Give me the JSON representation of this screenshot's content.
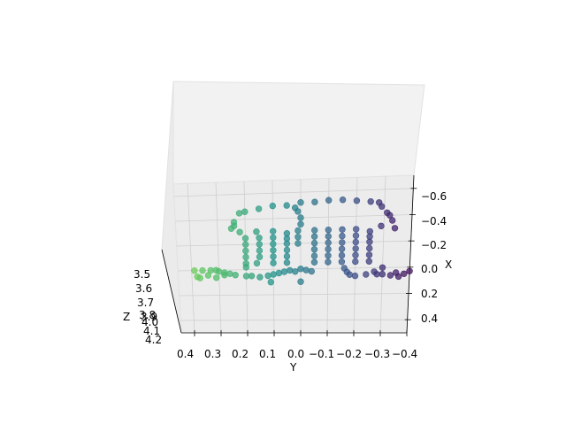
{
  "chart_data": {
    "type": "scatter",
    "projection": "3d",
    "title": "",
    "xlabel": "X",
    "ylabel": "Y",
    "zlabel": "Z",
    "xlim": [
      -0.7,
      0.5
    ],
    "ylim": [
      -0.4,
      0.45
    ],
    "zlim": [
      3.45,
      4.2
    ],
    "x_ticks": [
      "−0.6",
      "−0.4",
      "−0.2",
      "0.0",
      "0.2",
      "0.4"
    ],
    "y_ticks": [
      "0.4",
      "0.3",
      "0.2",
      "0.1",
      "0.0",
      "−0.1",
      "−0.2",
      "−0.3",
      "−0.4"
    ],
    "z_ticks": [
      "3.5",
      "3.6",
      "3.7",
      "3.8",
      "3.9",
      "4.0",
      "4.1",
      "4.2"
    ],
    "grid": true,
    "colormap": "viridis",
    "colors": {
      "pane": "#f2f2f2",
      "grid": "#cfcfcf"
    },
    "series": [
      {
        "points": [
          {
            "x": -0.52,
            "y": 0.0,
            "z": 3.9
          },
          {
            "x": -0.52,
            "y": -0.05,
            "z": 3.9
          },
          {
            "x": -0.53,
            "y": -0.1,
            "z": 3.9
          },
          {
            "x": -0.53,
            "y": -0.15,
            "z": 3.9
          },
          {
            "x": -0.52,
            "y": -0.2,
            "z": 3.9
          },
          {
            "x": -0.51,
            "y": -0.25,
            "z": 3.9
          },
          {
            "x": -0.5,
            "y": -0.28,
            "z": 3.9
          },
          {
            "x": -0.47,
            "y": -0.29,
            "z": 3.9
          },
          {
            "x": -0.42,
            "y": -0.31,
            "z": 3.9
          },
          {
            "x": -0.36,
            "y": -0.33,
            "z": 3.9
          },
          {
            "x": -0.3,
            "y": -0.34,
            "z": 3.9
          },
          {
            "x": -0.5,
            "y": 0.05,
            "z": 3.9
          },
          {
            "x": -0.5,
            "y": 0.1,
            "z": 3.9
          },
          {
            "x": -0.48,
            "y": 0.15,
            "z": 3.9
          },
          {
            "x": -0.46,
            "y": 0.2,
            "z": 3.9
          },
          {
            "x": -0.45,
            "y": 0.22,
            "z": 3.9
          },
          {
            "x": -0.38,
            "y": 0.24,
            "z": 3.9
          },
          {
            "x": -0.33,
            "y": 0.25,
            "z": 3.9
          },
          {
            "x": -0.48,
            "y": 0.02,
            "z": 3.9
          },
          {
            "x": -0.45,
            "y": 0.01,
            "z": 3.9
          },
          {
            "x": -0.4,
            "y": 0.0,
            "z": 3.9
          },
          {
            "x": -0.35,
            "y": 0.0,
            "z": 3.9
          },
          {
            "x": -0.3,
            "y": 0.01,
            "z": 3.9
          },
          {
            "x": -0.25,
            "y": 0.01,
            "z": 3.9
          },
          {
            "x": -0.2,
            "y": 0.01,
            "z": 3.9
          },
          {
            "x": -0.3,
            "y": 0.22,
            "z": 3.9
          },
          {
            "x": -0.25,
            "y": 0.2,
            "z": 3.9
          },
          {
            "x": -0.2,
            "y": 0.2,
            "z": 3.9
          },
          {
            "x": -0.15,
            "y": 0.2,
            "z": 3.9
          },
          {
            "x": -0.1,
            "y": 0.2,
            "z": 3.9
          },
          {
            "x": -0.05,
            "y": 0.2,
            "z": 3.9
          },
          {
            "x": -0.02,
            "y": 0.2,
            "z": 3.9
          },
          {
            "x": -0.3,
            "y": 0.16,
            "z": 3.9
          },
          {
            "x": -0.25,
            "y": 0.15,
            "z": 3.9
          },
          {
            "x": -0.2,
            "y": 0.15,
            "z": 3.9
          },
          {
            "x": -0.15,
            "y": 0.15,
            "z": 3.9
          },
          {
            "x": -0.1,
            "y": 0.15,
            "z": 3.9
          },
          {
            "x": -0.05,
            "y": 0.16,
            "z": 3.9
          },
          {
            "x": -0.3,
            "y": 0.1,
            "z": 3.9
          },
          {
            "x": -0.25,
            "y": 0.1,
            "z": 3.9
          },
          {
            "x": -0.2,
            "y": 0.1,
            "z": 3.9
          },
          {
            "x": -0.15,
            "y": 0.1,
            "z": 3.9
          },
          {
            "x": -0.1,
            "y": 0.1,
            "z": 3.9
          },
          {
            "x": -0.05,
            "y": 0.1,
            "z": 3.9
          },
          {
            "x": -0.28,
            "y": 0.05,
            "z": 3.9
          },
          {
            "x": -0.24,
            "y": 0.05,
            "z": 3.9
          },
          {
            "x": -0.2,
            "y": 0.05,
            "z": 3.9
          },
          {
            "x": -0.15,
            "y": 0.05,
            "z": 3.9
          },
          {
            "x": -0.1,
            "y": 0.05,
            "z": 3.9
          },
          {
            "x": -0.05,
            "y": 0.05,
            "z": 3.9
          },
          {
            "x": -0.3,
            "y": -0.05,
            "z": 3.9
          },
          {
            "x": -0.25,
            "y": -0.05,
            "z": 3.9
          },
          {
            "x": -0.2,
            "y": -0.05,
            "z": 3.9
          },
          {
            "x": -0.15,
            "y": -0.05,
            "z": 3.9
          },
          {
            "x": -0.1,
            "y": -0.05,
            "z": 3.9
          },
          {
            "x": -0.05,
            "y": -0.05,
            "z": 3.9
          },
          {
            "x": -0.3,
            "y": -0.1,
            "z": 3.9
          },
          {
            "x": -0.25,
            "y": -0.1,
            "z": 3.9
          },
          {
            "x": -0.2,
            "y": -0.1,
            "z": 3.9
          },
          {
            "x": -0.15,
            "y": -0.1,
            "z": 3.9
          },
          {
            "x": -0.1,
            "y": -0.1,
            "z": 3.9
          },
          {
            "x": -0.05,
            "y": -0.1,
            "z": 3.9
          },
          {
            "x": -0.3,
            "y": -0.15,
            "z": 3.9
          },
          {
            "x": -0.25,
            "y": -0.15,
            "z": 3.9
          },
          {
            "x": -0.2,
            "y": -0.15,
            "z": 3.9
          },
          {
            "x": -0.15,
            "y": -0.15,
            "z": 3.9
          },
          {
            "x": -0.1,
            "y": -0.15,
            "z": 3.9
          },
          {
            "x": -0.05,
            "y": -0.15,
            "z": 3.9
          },
          {
            "x": -0.3,
            "y": -0.2,
            "z": 3.9
          },
          {
            "x": -0.25,
            "y": -0.2,
            "z": 3.9
          },
          {
            "x": -0.2,
            "y": -0.2,
            "z": 3.9
          },
          {
            "x": -0.15,
            "y": -0.2,
            "z": 3.9
          },
          {
            "x": -0.1,
            "y": -0.2,
            "z": 3.9
          },
          {
            "x": -0.05,
            "y": -0.2,
            "z": 3.9
          },
          {
            "x": -0.28,
            "y": -0.25,
            "z": 3.9
          },
          {
            "x": -0.24,
            "y": -0.25,
            "z": 3.9
          },
          {
            "x": -0.2,
            "y": -0.25,
            "z": 3.9
          },
          {
            "x": -0.15,
            "y": -0.25,
            "z": 3.9
          },
          {
            "x": -0.1,
            "y": -0.25,
            "z": 3.9
          },
          {
            "x": -0.05,
            "y": -0.25,
            "z": 3.9
          },
          {
            "x": 0.0,
            "y": -0.3,
            "z": 3.9
          },
          {
            "x": 0.03,
            "y": -0.27,
            "z": 3.9
          },
          {
            "x": 0.05,
            "y": -0.24,
            "z": 3.9
          },
          {
            "x": 0.06,
            "y": -0.2,
            "z": 3.9
          },
          {
            "x": 0.05,
            "y": -0.18,
            "z": 3.9
          },
          {
            "x": 0.03,
            "y": -0.17,
            "z": 3.9
          },
          {
            "x": 0.0,
            "y": -0.16,
            "z": 3.9
          },
          {
            "x": 0.0,
            "y": 0.0,
            "z": 3.9
          },
          {
            "x": 0.01,
            "y": -0.02,
            "z": 3.9
          },
          {
            "x": 0.02,
            "y": -0.04,
            "z": 3.9
          },
          {
            "x": 0.02,
            "y": 0.02,
            "z": 3.9
          },
          {
            "x": 0.01,
            "y": 0.04,
            "z": 3.9
          },
          {
            "x": 0.02,
            "y": 0.06,
            "z": 3.9
          },
          {
            "x": 0.03,
            "y": 0.08,
            "z": 3.9
          },
          {
            "x": 0.04,
            "y": 0.1,
            "z": 3.9
          },
          {
            "x": 0.05,
            "y": 0.12,
            "z": 3.9
          },
          {
            "x": 0.06,
            "y": 0.15,
            "z": 3.9
          },
          {
            "x": 0.05,
            "y": 0.18,
            "z": 3.9
          },
          {
            "x": 0.05,
            "y": 0.2,
            "z": 3.9
          },
          {
            "x": 0.04,
            "y": 0.24,
            "z": 3.9
          },
          {
            "x": 0.03,
            "y": 0.26,
            "z": 3.9
          },
          {
            "x": 0.02,
            "y": 0.28,
            "z": 3.9
          },
          {
            "x": 0.01,
            "y": 0.3,
            "z": 3.9
          },
          {
            "x": 0.0,
            "y": 0.31,
            "z": 3.9
          },
          {
            "x": 0.0,
            "y": 0.33,
            "z": 3.9
          },
          {
            "x": 0.0,
            "y": 0.36,
            "z": 3.9
          },
          {
            "x": 0.0,
            "y": 0.39,
            "z": 3.9
          },
          {
            "x": 0.05,
            "y": 0.38,
            "z": 3.9
          },
          {
            "x": 0.06,
            "y": 0.37,
            "z": 3.9
          },
          {
            "x": 0.04,
            "y": 0.34,
            "z": 3.9
          },
          {
            "x": 0.06,
            "y": 0.31,
            "z": 3.9
          },
          {
            "x": 0.04,
            "y": 0.28,
            "z": 3.9
          },
          {
            "x": 0.05,
            "y": -0.3,
            "z": 3.9
          },
          {
            "x": 0.06,
            "y": -0.33,
            "z": 3.9
          },
          {
            "x": 0.07,
            "y": -0.36,
            "z": 3.9
          },
          {
            "x": 0.05,
            "y": -0.38,
            "z": 3.9
          },
          {
            "x": 0.03,
            "y": -0.4,
            "z": 3.9
          },
          {
            "x": 0.05,
            "y": -0.28,
            "z": 3.9
          },
          {
            "x": 0.04,
            "y": -0.35,
            "z": 3.9
          },
          {
            "x": 0.1,
            "y": 0.11,
            "z": 3.9
          },
          {
            "x": 0.1,
            "y": 0.0,
            "z": 3.9
          },
          {
            "x": -0.32,
            "y": -0.29,
            "z": 3.9
          },
          {
            "x": -0.4,
            "y": -0.32,
            "z": 3.9
          },
          {
            "x": -0.35,
            "y": 0.24,
            "z": 3.9
          }
        ]
      }
    ]
  }
}
